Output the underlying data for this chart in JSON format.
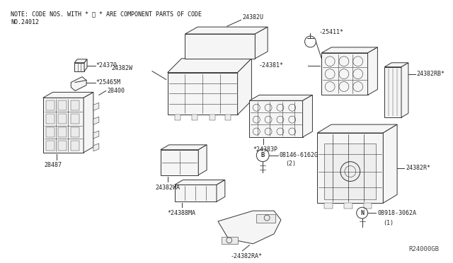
{
  "bg_color": "#ffffff",
  "note_line1": "NOTE: CODE NOS. WITH * ※ * ARE COMPONENT PARTS OF CODE",
  "note_line2": "NO.24012",
  "watermark": "R24000GB",
  "font_family": "monospace",
  "ec": "#333333",
  "fc": "#f5f5f5",
  "lw": 0.7
}
